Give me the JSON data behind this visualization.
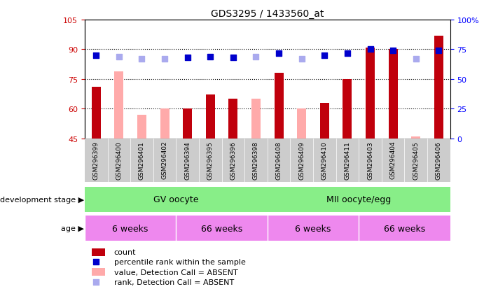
{
  "title": "GDS3295 / 1433560_at",
  "samples": [
    "GSM296399",
    "GSM296400",
    "GSM296401",
    "GSM296402",
    "GSM296394",
    "GSM296395",
    "GSM296396",
    "GSM296398",
    "GSM296408",
    "GSM296409",
    "GSM296410",
    "GSM296411",
    "GSM296403",
    "GSM296404",
    "GSM296405",
    "GSM296406"
  ],
  "count_values": [
    71,
    null,
    null,
    null,
    60,
    67,
    65,
    null,
    78,
    null,
    63,
    75,
    91,
    90,
    null,
    97
  ],
  "count_absent_values": [
    null,
    79,
    57,
    60,
    null,
    null,
    null,
    65,
    null,
    60,
    null,
    null,
    null,
    null,
    46,
    null
  ],
  "rank_pct_values": [
    70,
    null,
    null,
    null,
    68,
    69,
    68,
    null,
    72,
    null,
    70,
    72,
    75,
    74,
    null,
    74
  ],
  "rank_pct_absent": [
    null,
    69,
    67,
    67,
    null,
    null,
    null,
    69,
    null,
    67,
    null,
    null,
    null,
    null,
    67,
    null
  ],
  "ylim_left": [
    45,
    105
  ],
  "ylim_right": [
    0,
    100
  ],
  "yticks_left": [
    45,
    60,
    75,
    90,
    105
  ],
  "yticks_right": [
    0,
    25,
    50,
    75,
    100
  ],
  "ytick_labels_left": [
    "45",
    "60",
    "75",
    "90",
    "105"
  ],
  "ytick_labels_right": [
    "0",
    "25",
    "50",
    "75",
    "100%"
  ],
  "bar_color_red": "#c0000c",
  "bar_color_pink": "#ffaaaa",
  "dot_color_blue": "#0000cc",
  "dot_color_lightblue": "#aaaaee",
  "bar_width": 0.4,
  "dot_size": 40,
  "gv_label": "GV oocyte",
  "mii_label": "MII oocyte/egg",
  "gv_color": "#88ee88",
  "mii_color": "#88ee88",
  "age_6w_color": "#ee88ee",
  "age_66w_color": "#ee88ee",
  "background_color": "#ffffff",
  "label_dev_stage": "development stage",
  "label_age": "age"
}
